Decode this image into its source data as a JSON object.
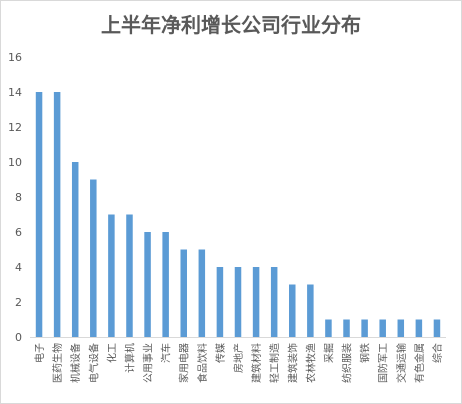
{
  "chart_data": {
    "type": "bar",
    "title": "上半年净利增长公司行业分布",
    "xlabel": "",
    "ylabel": "",
    "ylim": [
      0,
      16
    ],
    "yticks": [
      0,
      2,
      4,
      6,
      8,
      10,
      12,
      14,
      16
    ],
    "grid": false,
    "legend": "none",
    "bar_color": "#5b9bd5",
    "categories": [
      "电子",
      "医药生物",
      "机械设备",
      "电气设备",
      "化工",
      "计算机",
      "公用事业",
      "汽车",
      "家用电器",
      "食品饮料",
      "传媒",
      "房地产",
      "建筑材料",
      "轻工制造",
      "建筑装饰",
      "农林牧渔",
      "采掘",
      "纺织服装",
      "钢铁",
      "国防军工",
      "交通运输",
      "有色金属",
      "综合"
    ],
    "values": [
      14,
      14,
      10,
      9,
      7,
      7,
      6,
      6,
      5,
      5,
      4,
      4,
      4,
      4,
      3,
      3,
      1,
      1,
      1,
      1,
      1,
      1,
      1
    ]
  }
}
